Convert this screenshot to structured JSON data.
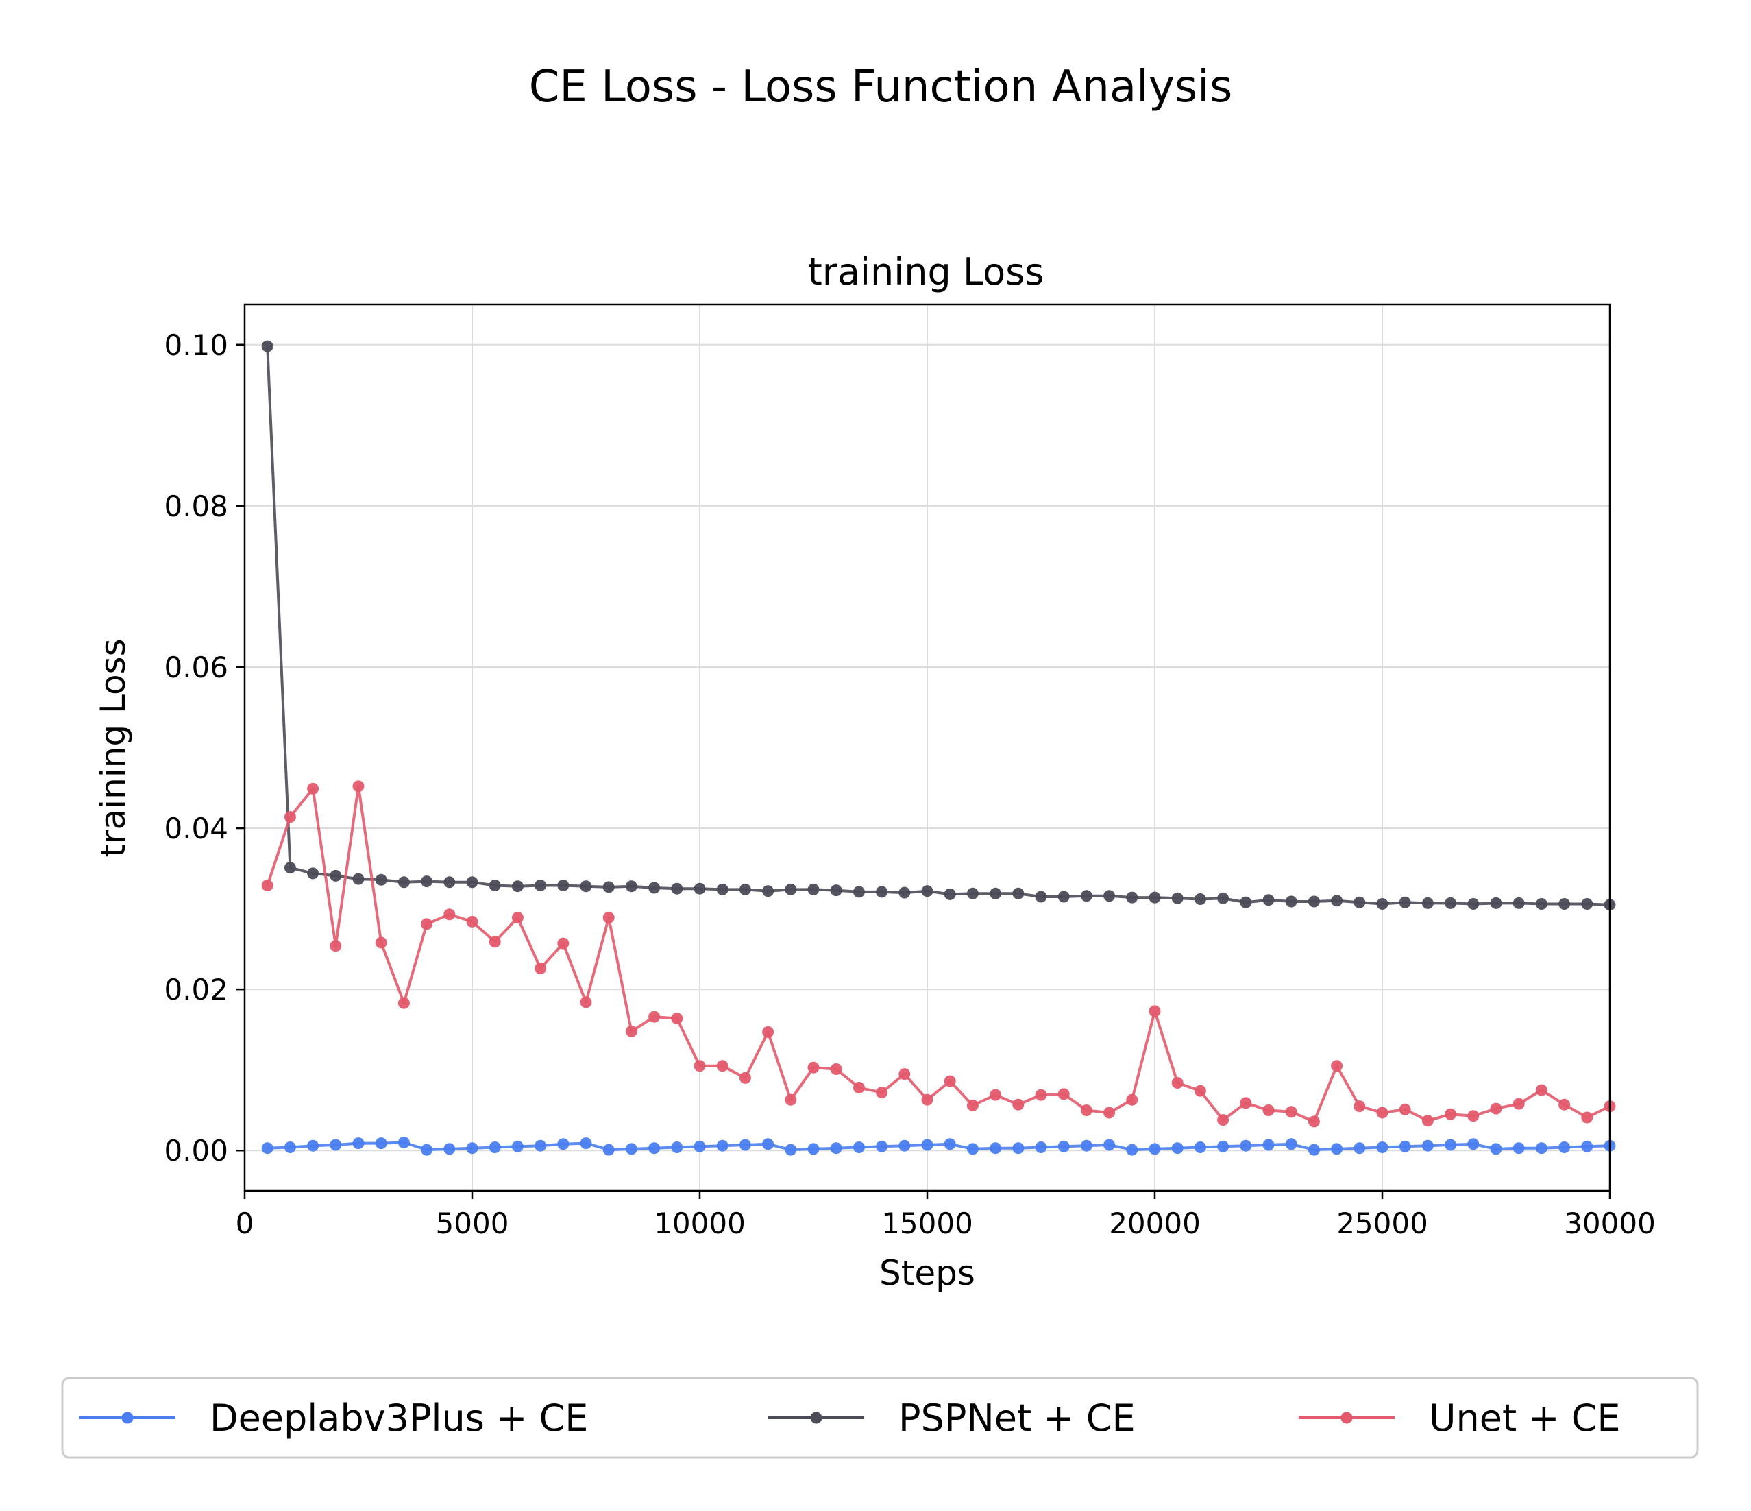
{
  "figure_title": "CE Loss - Loss Function Analysis",
  "chart_data": {
    "type": "line",
    "title": "training Loss",
    "xlabel": "Steps",
    "ylabel": "training Loss",
    "xlim": [
      0,
      30000
    ],
    "ylim": [
      -0.005,
      0.105
    ],
    "xticks": [
      0,
      5000,
      10000,
      15000,
      20000,
      25000,
      30000
    ],
    "xtick_labels": [
      "0",
      "5000",
      "10000",
      "15000",
      "20000",
      "25000",
      "30000"
    ],
    "yticks": [
      0.0,
      0.02,
      0.04,
      0.06,
      0.08,
      0.1
    ],
    "ytick_labels": [
      "0.00",
      "0.02",
      "0.04",
      "0.06",
      "0.08",
      "0.10"
    ],
    "grid": true,
    "legend_position": "bottom, outside plot",
    "x": [
      500,
      1000,
      1500,
      2000,
      2500,
      3000,
      3500,
      4000,
      4500,
      5000,
      5500,
      6000,
      6500,
      7000,
      7500,
      8000,
      8500,
      9000,
      9500,
      10000,
      10500,
      11000,
      11500,
      12000,
      12500,
      13000,
      13500,
      14000,
      14500,
      15000,
      15500,
      16000,
      16500,
      17000,
      17500,
      18000,
      18500,
      19000,
      19500,
      20000,
      20500,
      21000,
      21500,
      22000,
      22500,
      23000,
      23500,
      24000,
      24500,
      25000,
      25500,
      26000,
      26500,
      27000,
      27500,
      28000,
      28500,
      29000,
      29500,
      30000
    ],
    "series": [
      {
        "name": "Deeplabv3Plus + CE",
        "color": "#4a7ef0",
        "values": [
          0.0003,
          0.0004,
          0.0006,
          0.0007,
          0.0009,
          0.0009,
          0.001,
          0.0001,
          0.0002,
          0.0003,
          0.0004,
          0.0005,
          0.0006,
          0.0008,
          0.0009,
          0.0001,
          0.0002,
          0.0003,
          0.0004,
          0.0005,
          0.0006,
          0.0007,
          0.0008,
          0.0001,
          0.0002,
          0.0003,
          0.0004,
          0.0005,
          0.0006,
          0.0007,
          0.0008,
          0.0002,
          0.0003,
          0.0003,
          0.0004,
          0.0005,
          0.0006,
          0.0007,
          0.0001,
          0.0002,
          0.0003,
          0.0004,
          0.0005,
          0.0006,
          0.0007,
          0.0008,
          0.0001,
          0.0002,
          0.0003,
          0.0004,
          0.0005,
          0.0006,
          0.0007,
          0.0008,
          0.0002,
          0.0003,
          0.0003,
          0.0004,
          0.0005,
          0.0006
        ]
      },
      {
        "name": "PSPNet + CE",
        "color": "#4b4a57",
        "values": [
          0.0998,
          0.0351,
          0.0344,
          0.0341,
          0.0337,
          0.0336,
          0.0333,
          0.0334,
          0.0333,
          0.0333,
          0.0329,
          0.0328,
          0.0329,
          0.0329,
          0.0328,
          0.0327,
          0.0328,
          0.0326,
          0.0325,
          0.0325,
          0.0324,
          0.0324,
          0.0322,
          0.0324,
          0.0324,
          0.0323,
          0.0321,
          0.0321,
          0.032,
          0.0322,
          0.0318,
          0.0319,
          0.0319,
          0.0319,
          0.0315,
          0.0315,
          0.0316,
          0.0316,
          0.0314,
          0.0314,
          0.0313,
          0.0312,
          0.0313,
          0.0308,
          0.0311,
          0.0309,
          0.0309,
          0.031,
          0.0308,
          0.0306,
          0.0308,
          0.0307,
          0.0307,
          0.0306,
          0.0307,
          0.0307,
          0.0306,
          0.0306,
          0.0306,
          0.0305
        ]
      },
      {
        "name": "Unet + CE",
        "color": "#e35a6c",
        "values": [
          0.0329,
          0.0414,
          0.0449,
          0.0254,
          0.0452,
          0.0258,
          0.0183,
          0.0281,
          0.0293,
          0.0284,
          0.0259,
          0.0289,
          0.0226,
          0.0257,
          0.0184,
          0.0289,
          0.0148,
          0.0166,
          0.0164,
          0.0105,
          0.0105,
          0.009,
          0.0147,
          0.0063,
          0.0103,
          0.0101,
          0.0078,
          0.0072,
          0.0095,
          0.0063,
          0.0086,
          0.0056,
          0.0069,
          0.0057,
          0.0069,
          0.007,
          0.005,
          0.0047,
          0.0063,
          0.0173,
          0.0084,
          0.0074,
          0.0038,
          0.0059,
          0.005,
          0.0048,
          0.0036,
          0.0105,
          0.0055,
          0.0047,
          0.0051,
          0.0037,
          0.0045,
          0.0043,
          0.0052,
          0.0058,
          0.0075,
          0.0057,
          0.0041,
          0.0055
        ]
      }
    ]
  }
}
